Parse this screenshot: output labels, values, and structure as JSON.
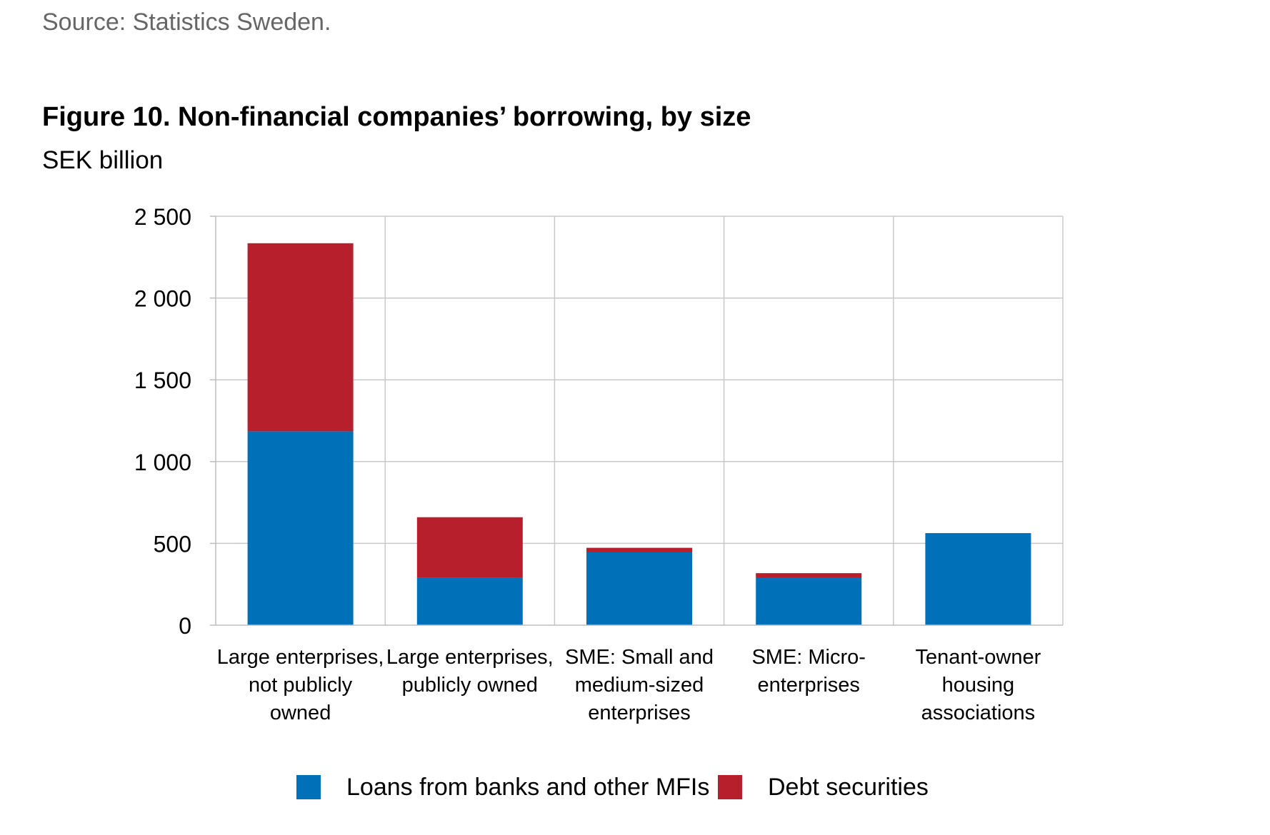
{
  "source": "Source: Statistics Sweden.",
  "title": "Figure 10. Non-financial companies’ borrowing, by size",
  "subtitle": "SEK billion",
  "colors": {
    "loans": "#0070B8",
    "debt": "#B81F2D",
    "grid": "#C8C8C8",
    "axis": "#BDBDBD"
  },
  "chart_data": {
    "type": "bar",
    "stacked": true,
    "categories": [
      [
        "Large enterprises,",
        "not publicly",
        "owned"
      ],
      [
        "Large enterprises,",
        "publicly owned"
      ],
      [
        "SME: Small and",
        "medium-sized",
        "enterprises"
      ],
      [
        "SME: Micro-",
        "enterprises"
      ],
      [
        "Tenant-owner",
        "housing",
        "associations"
      ]
    ],
    "series": [
      {
        "name": "Loans from banks and other MFIs",
        "values": [
          1185,
          292,
          445,
          290,
          563
        ]
      },
      {
        "name": "Debt securities",
        "values": [
          1150,
          368,
          28,
          28,
          0
        ]
      }
    ],
    "title": "Figure 10. Non-financial companies’ borrowing, by size",
    "ylabel": "SEK billion",
    "ylim": [
      0,
      2500
    ],
    "yticks": [
      0,
      500,
      1000,
      1500,
      2000,
      2500
    ],
    "yticklabels": [
      "0",
      "500",
      "1 000",
      "1 500",
      "2 000",
      "2 500"
    ],
    "grid": true,
    "legend": "bottom"
  }
}
